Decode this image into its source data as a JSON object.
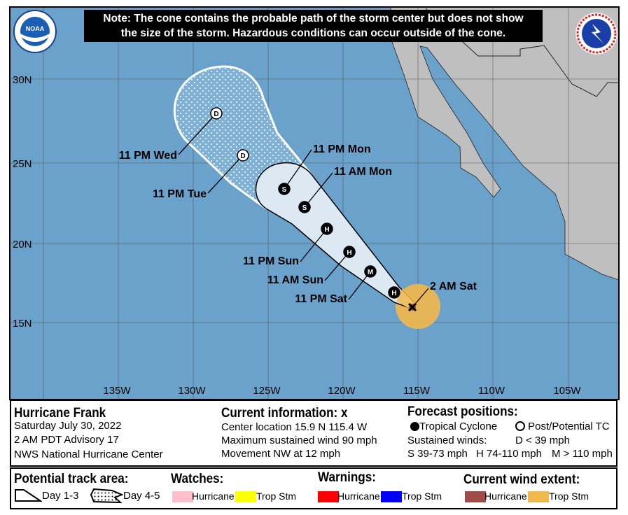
{
  "note": {
    "line1": "Note: The cone contains the probable path of the storm center but does not show",
    "line2": "the size of the storm. Hazardous conditions can occur outside of the cone."
  },
  "logos": {
    "left": "NOAA",
    "right": "NATIONAL WEATHER SERVICE"
  },
  "colors": {
    "ocean": "#6aa2cc",
    "land": "#bfbfbf",
    "cone_day1_3": "#dde9f2",
    "wind_trop_stm": "#f2b84a",
    "wind_hurricane": "#a04a4a"
  },
  "axes": {
    "lat": [
      "30N",
      "25N",
      "20N",
      "15N"
    ],
    "lon": [
      "135W",
      "130W",
      "125W",
      "120W",
      "115W",
      "110W",
      "105W"
    ]
  },
  "track": [
    {
      "label": "2 AM Sat",
      "symbol": "X"
    },
    {
      "label": "",
      "symbol": "H"
    },
    {
      "label": "11 PM Sat",
      "symbol": "M"
    },
    {
      "label": "11 AM Sun",
      "symbol": "H"
    },
    {
      "label": "11 PM Sun",
      "symbol": "H"
    },
    {
      "label": "11 AM Mon",
      "symbol": "S"
    },
    {
      "label": "11 PM Mon",
      "symbol": "S"
    },
    {
      "label": "11 PM Tue",
      "symbol": "D"
    },
    {
      "label": "11 PM Wed",
      "symbol": "D"
    }
  ],
  "storm": {
    "name": "Hurricane Frank",
    "date": "Saturday July 30, 2022",
    "advisory": "2 AM PDT Advisory 17",
    "center": "NWS National Hurricane Center"
  },
  "current": {
    "title": "Current information:",
    "marker": "x",
    "location": "Center location 15.9 N 115.4 W",
    "wind": "Maximum sustained wind 90 mph",
    "movement": "Movement NW at 12 mph"
  },
  "forecast": {
    "title": "Forecast positions:",
    "tc": "Tropical Cyclone",
    "ptc": "Post/Potential TC",
    "winds_label": "Sustained winds:",
    "d": "D < 39 mph",
    "s": "S 39-73 mph",
    "h": "H 74-110 mph",
    "m": "M > 110 mph"
  },
  "legend": {
    "track_title": "Potential track area:",
    "day13": "Day 1-3",
    "day45": "Day 4-5",
    "watches_title": "Watches:",
    "watch_hurricane": "Hurricane",
    "watch_tropstm": "Trop Stm",
    "warnings_title": "Warnings:",
    "warn_hurricane": "Hurricane",
    "warn_tropstm": "Trop Stm",
    "wind_title": "Current wind extent:",
    "wind_hurricane": "Hurricane",
    "wind_tropstm": "Trop Stm",
    "swatch_colors": {
      "watch_hurricane": "#ffc0cb",
      "watch_tropstm": "#ffff00",
      "warn_hurricane": "#ff0000",
      "warn_tropstm": "#0000ff",
      "wind_hurricane": "#a04a4a",
      "wind_tropstm": "#f2b84a"
    }
  }
}
